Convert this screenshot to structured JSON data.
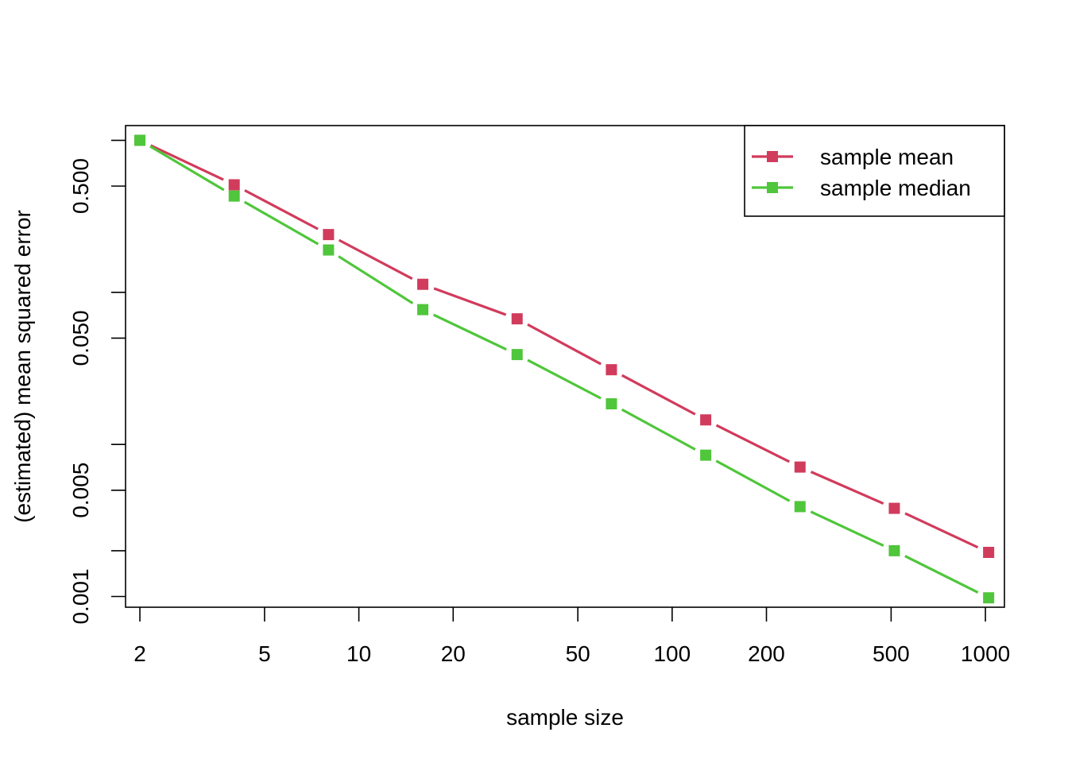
{
  "chart_data": {
    "type": "line",
    "title": "",
    "xlabel": "sample size",
    "ylabel": "(estimated) mean squared error",
    "x_scale": "log",
    "y_scale": "log",
    "x": [
      2,
      4,
      8,
      16,
      32,
      64,
      128,
      256,
      512,
      1024
    ],
    "series": [
      {
        "name": "sample mean",
        "color": "#d13b5c",
        "values": [
          1.0,
          0.51,
          0.24,
          0.113,
          0.067,
          0.031,
          0.0145,
          0.0071,
          0.0038,
          0.00195
        ]
      },
      {
        "name": "sample median",
        "color": "#4fc63b",
        "values": [
          1.0,
          0.43,
          0.19,
          0.077,
          0.039,
          0.0185,
          0.0085,
          0.0039,
          0.002,
          0.00098
        ]
      }
    ],
    "x_ticks": [
      {
        "value": 2,
        "label": "2"
      },
      {
        "value": 5,
        "label": "5"
      },
      {
        "value": 10,
        "label": "10"
      },
      {
        "value": 20,
        "label": "20"
      },
      {
        "value": 50,
        "label": "50"
      },
      {
        "value": 100,
        "label": "100"
      },
      {
        "value": 200,
        "label": "200"
      },
      {
        "value": 500,
        "label": "500"
      },
      {
        "value": 1000,
        "label": "1000"
      }
    ],
    "y_ticks": [
      {
        "value": 0.001,
        "label": "0.001"
      },
      {
        "value": 0.002,
        "label": ""
      },
      {
        "value": 0.005,
        "label": "0.005"
      },
      {
        "value": 0.01,
        "label": ""
      },
      {
        "value": 0.05,
        "label": "0.050"
      },
      {
        "value": 0.1,
        "label": ""
      },
      {
        "value": 0.5,
        "label": "0.500"
      },
      {
        "value": 1,
        "label": ""
      }
    ],
    "xlim": [
      1.8,
      1150
    ],
    "ylim": [
      0.00085,
      1.25
    ],
    "grid": false,
    "legend_position": "top-right",
    "marker": "filled-square"
  }
}
